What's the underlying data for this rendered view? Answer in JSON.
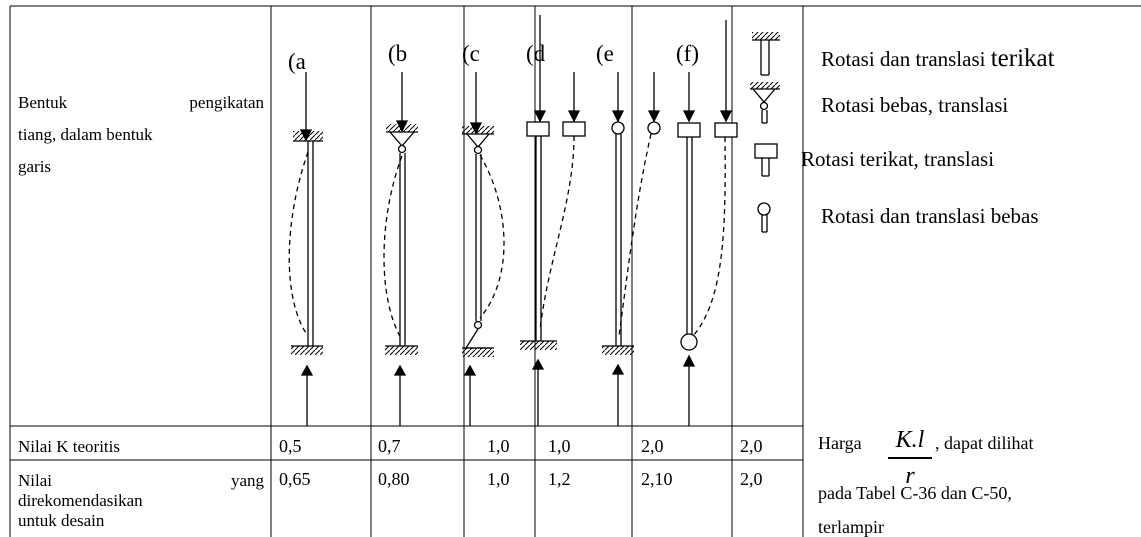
{
  "row_header": {
    "bentuk_line1_a": "Bentuk",
    "bentuk_line1_b": "pengikatan",
    "bentuk_line2": "tiang, dalam bentuk",
    "bentuk_line3": "garis"
  },
  "columns": [
    {
      "label": "(a",
      "k_teoritis": "0,5",
      "k_rekomendasi": "0,65"
    },
    {
      "label": "(b",
      "k_teoritis": "0,7",
      "k_rekomendasi": "0,80"
    },
    {
      "label": "(c",
      "k_teoritis": "1,0",
      "k_rekomendasi": "1,0"
    },
    {
      "label": "(d",
      "k_teoritis": "1,0",
      "k_rekomendasi": "1,2"
    },
    {
      "label": "(e",
      "k_teoritis": "2,0",
      "k_rekomendasi": "2,10"
    },
    {
      "label": "(f)",
      "k_teoritis": "2,0",
      "k_rekomendasi": "2,0"
    }
  ],
  "rows": {
    "k_teoritis_label": "Nilai K teoritis",
    "rec_label_a": "Nilai",
    "rec_label_b": "yang",
    "rec_label_line2": "direkomendasikan",
    "rec_label_line3": "untuk desain"
  },
  "legend": [
    {
      "icon": "fixed-support-icon",
      "text_a": "Rotasi dan translasi ",
      "text_b": "terikat"
    },
    {
      "icon": "pin-support-icon",
      "text_a": "Rotasi bebas,  translasi",
      "text_b": ""
    },
    {
      "icon": "sliding-support-icon",
      "text_a": "Rotasi  terikat,  translasi",
      "text_b": ""
    },
    {
      "icon": "free-end-icon",
      "text_a": "Rotasi dan translasi bebas",
      "text_b": ""
    }
  ],
  "note": {
    "harga": "Harga",
    "frac_num": "K.l",
    "frac_den": "r",
    "dilihat": ", dapat dilihat",
    "line2": "pada Tabel C-36 dan C-50,",
    "line3": "terlampir"
  }
}
